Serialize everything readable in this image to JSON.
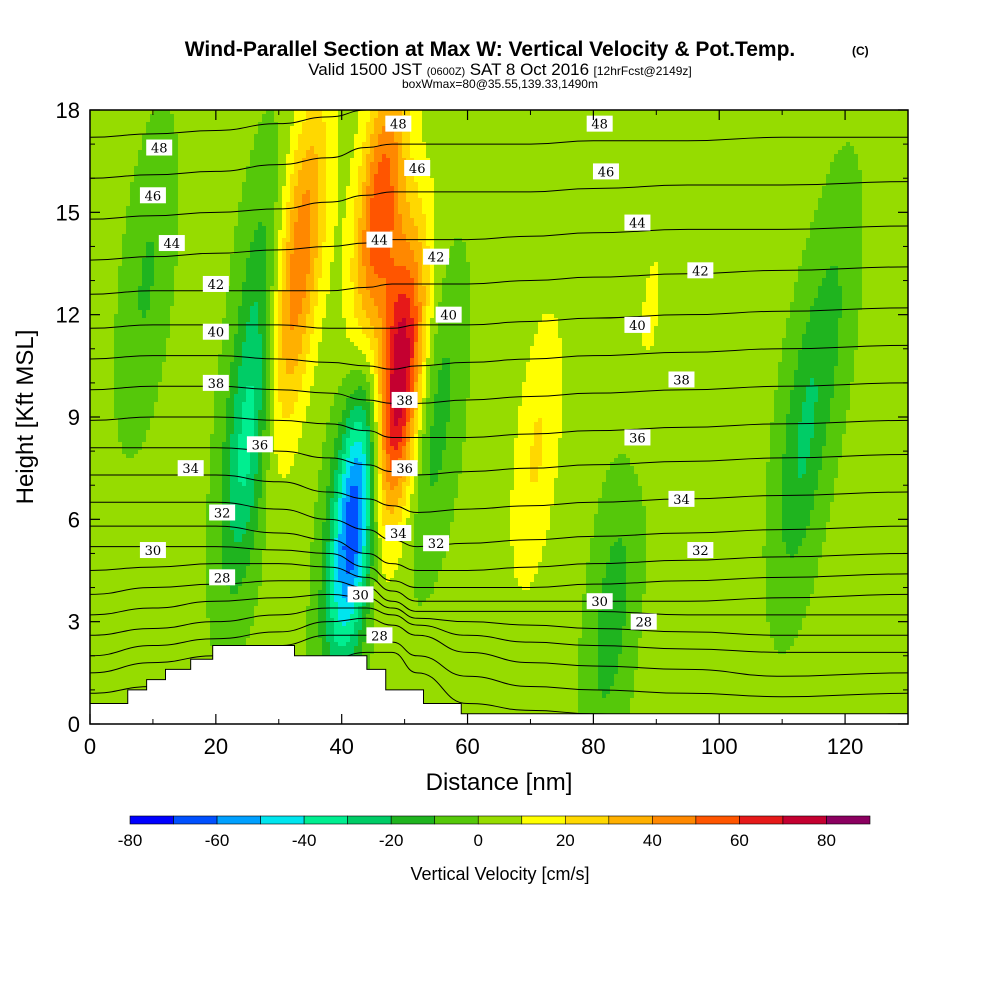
{
  "chart_data": {
    "type": "heatmap",
    "title": "Wind-Parallel Section at Max W: Vertical Velocity & Pot.Temp.",
    "title_mark": "(C)",
    "subtitle_parts": {
      "a": "Valid 1500 JST",
      "b": "(0600Z)",
      "c": "SAT 8 Oct 2016",
      "d": "[12hrFcst@2149z]"
    },
    "subtitle2": "boxWmax=80@35.55,139.33,1490m",
    "xlabel": "Distance [nm]",
    "ylabel": "Height [Kft MSL]",
    "xlim": [
      0,
      130
    ],
    "ylim": [
      0,
      18
    ],
    "xticks": [
      0,
      20,
      40,
      60,
      80,
      100,
      120
    ],
    "yticks": [
      0,
      3,
      6,
      9,
      12,
      15,
      18
    ],
    "colorbar": {
      "label": "Vertical Velocity [cm/s]",
      "levels": [
        -80,
        -70,
        -60,
        -50,
        -40,
        -30,
        -20,
        -10,
        0,
        10,
        20,
        30,
        40,
        50,
        60,
        70,
        80,
        90
      ],
      "colors": [
        "#0000ff",
        "#0050ff",
        "#00a0ff",
        "#00e5ee",
        "#00ee90",
        "#00cc66",
        "#1fb41f",
        "#55c80a",
        "#96dc00",
        "#ffff00",
        "#ffd800",
        "#ffb000",
        "#ff8800",
        "#ff5500",
        "#e61919",
        "#c40030",
        "#8b0060"
      ],
      "tick_labels": [
        "-80",
        "-60",
        "-40",
        "-20",
        "0",
        "20",
        "40",
        "60",
        "80"
      ]
    },
    "w_features": [
      {
        "x": 9,
        "z": 13,
        "w": -14
      },
      {
        "x": 25,
        "z": 8,
        "w": -35
      },
      {
        "x": 27,
        "z": 13,
        "w": -15
      },
      {
        "x": 31,
        "z": 11,
        "w": 20
      },
      {
        "x": 34,
        "z": 14.5,
        "w": 35
      },
      {
        "x": 42,
        "z": 6,
        "w": -75
      },
      {
        "x": 49,
        "z": 10,
        "w": 80
      },
      {
        "x": 46,
        "z": 15,
        "w": 55
      },
      {
        "x": 55,
        "z": 9,
        "w": -18
      },
      {
        "x": 71,
        "z": 8,
        "w": 18
      },
      {
        "x": 83,
        "z": 3.2,
        "w": -18
      },
      {
        "x": 89,
        "z": 12,
        "w": 8
      },
      {
        "x": 113,
        "z": 8,
        "w": -22
      },
      {
        "x": 118,
        "z": 12,
        "w": -12
      }
    ],
    "theta_labels": [
      {
        "v": "48",
        "x": 11,
        "z": 16.9
      },
      {
        "v": "46",
        "x": 10,
        "z": 15.5
      },
      {
        "v": "44",
        "x": 13,
        "z": 14.1
      },
      {
        "v": "42",
        "x": 20,
        "z": 12.9
      },
      {
        "v": "40",
        "x": 20,
        "z": 11.5
      },
      {
        "v": "38",
        "x": 20,
        "z": 10.0
      },
      {
        "v": "36",
        "x": 27,
        "z": 8.2
      },
      {
        "v": "34",
        "x": 16,
        "z": 7.5
      },
      {
        "v": "32",
        "x": 21,
        "z": 6.2
      },
      {
        "v": "30",
        "x": 10,
        "z": 5.1
      },
      {
        "v": "28",
        "x": 21,
        "z": 4.3
      },
      {
        "v": "48",
        "x": 49,
        "z": 17.6
      },
      {
        "v": "46",
        "x": 52,
        "z": 16.3
      },
      {
        "v": "44",
        "x": 46,
        "z": 14.2
      },
      {
        "v": "42",
        "x": 55,
        "z": 13.7
      },
      {
        "v": "40",
        "x": 57,
        "z": 12.0
      },
      {
        "v": "38",
        "x": 50,
        "z": 9.5
      },
      {
        "v": "36",
        "x": 50,
        "z": 7.5
      },
      {
        "v": "34",
        "x": 49,
        "z": 5.6
      },
      {
        "v": "32",
        "x": 55,
        "z": 5.3
      },
      {
        "v": "30",
        "x": 43,
        "z": 3.8
      },
      {
        "v": "28",
        "x": 46,
        "z": 2.6
      },
      {
        "v": "48",
        "x": 81,
        "z": 17.6
      },
      {
        "v": "46",
        "x": 82,
        "z": 16.2
      },
      {
        "v": "44",
        "x": 87,
        "z": 14.7
      },
      {
        "v": "42",
        "x": 97,
        "z": 13.3
      },
      {
        "v": "40",
        "x": 87,
        "z": 11.7
      },
      {
        "v": "38",
        "x": 94,
        "z": 10.1
      },
      {
        "v": "36",
        "x": 87,
        "z": 8.4
      },
      {
        "v": "34",
        "x": 94,
        "z": 6.6
      },
      {
        "v": "32",
        "x": 97,
        "z": 5.1
      },
      {
        "v": "30",
        "x": 81,
        "z": 3.6
      },
      {
        "v": "28",
        "x": 88,
        "z": 3.0
      }
    ],
    "theta_lines": [
      {
        "z": [
          0.9,
          1.1,
          1.2,
          1.5,
          1.9,
          2.1,
          2.1,
          1.5,
          0.6,
          0.4,
          0.3,
          0.2,
          0.2,
          0.3
        ]
      },
      {
        "z": [
          1.5,
          1.8,
          2.0,
          2.3,
          2.6,
          2.6,
          2.4,
          2.0,
          1.4,
          1.1,
          1.0,
          0.9,
          0.8,
          0.9
        ]
      },
      {
        "z": [
          2.0,
          2.3,
          2.5,
          2.7,
          3.0,
          3.1,
          2.9,
          2.6,
          2.1,
          1.8,
          1.7,
          1.6,
          1.4,
          1.5
        ]
      },
      {
        "z": [
          2.6,
          2.8,
          3.0,
          3.2,
          3.4,
          3.4,
          3.2,
          2.9,
          2.6,
          2.4,
          2.3,
          2.2,
          2.1,
          2.1
        ]
      },
      {
        "z": [
          3.2,
          3.4,
          3.6,
          3.7,
          3.8,
          3.7,
          3.4,
          3.1,
          3.0,
          2.9,
          2.8,
          2.7,
          2.6,
          2.6
        ]
      },
      {
        "z": [
          3.8,
          4.0,
          4.1,
          4.2,
          4.2,
          4.0,
          3.6,
          3.3,
          3.3,
          3.3,
          3.3,
          3.2,
          3.2,
          3.2
        ]
      },
      {
        "z": [
          4.5,
          4.6,
          4.7,
          4.7,
          4.6,
          4.3,
          3.9,
          3.6,
          3.6,
          3.6,
          3.6,
          3.6,
          3.7,
          3.8
        ]
      },
      {
        "z": [
          5.2,
          5.2,
          5.2,
          5.1,
          5.0,
          4.6,
          4.2,
          4.0,
          4.0,
          4.0,
          4.1,
          4.2,
          4.3,
          4.4
        ]
      },
      {
        "z": [
          5.8,
          5.8,
          5.8,
          5.6,
          5.4,
          5.0,
          4.7,
          4.5,
          4.5,
          4.6,
          4.7,
          4.8,
          4.9,
          5.0
        ]
      },
      {
        "z": [
          6.5,
          6.5,
          6.5,
          6.3,
          6.0,
          5.7,
          5.4,
          5.2,
          5.3,
          5.4,
          5.5,
          5.6,
          5.7,
          5.8
        ]
      },
      {
        "z": [
          7.3,
          7.3,
          7.3,
          7.1,
          6.8,
          6.6,
          6.4,
          6.2,
          6.3,
          6.4,
          6.5,
          6.6,
          6.7,
          6.8
        ]
      },
      {
        "z": [
          8.1,
          8.1,
          8.1,
          8.0,
          7.8,
          7.6,
          7.4,
          7.3,
          7.4,
          7.5,
          7.6,
          7.7,
          7.8,
          7.9
        ]
      },
      {
        "z": [
          8.9,
          9.0,
          9.0,
          8.9,
          8.8,
          8.6,
          8.4,
          8.4,
          8.4,
          8.5,
          8.6,
          8.7,
          8.8,
          8.9
        ]
      },
      {
        "z": [
          9.8,
          9.9,
          9.9,
          9.8,
          9.7,
          9.5,
          9.4,
          9.4,
          9.5,
          9.6,
          9.7,
          9.8,
          9.9,
          10.0
        ]
      },
      {
        "z": [
          10.7,
          10.8,
          10.8,
          10.7,
          10.6,
          10.5,
          10.4,
          10.5,
          10.6,
          10.7,
          10.8,
          10.9,
          11.0,
          11.1
        ]
      },
      {
        "z": [
          11.6,
          11.7,
          11.7,
          11.7,
          11.6,
          11.6,
          11.6,
          11.7,
          11.7,
          11.8,
          11.9,
          12.0,
          12.1,
          12.2
        ]
      },
      {
        "z": [
          12.6,
          12.7,
          12.7,
          12.7,
          12.7,
          12.8,
          12.9,
          12.9,
          12.9,
          13.0,
          13.1,
          13.2,
          13.3,
          13.4
        ]
      },
      {
        "z": [
          13.6,
          13.7,
          13.8,
          13.9,
          14.0,
          14.1,
          14.2,
          14.2,
          14.2,
          14.3,
          14.4,
          14.5,
          14.5,
          14.6
        ]
      },
      {
        "z": [
          14.8,
          14.9,
          15.0,
          15.1,
          15.3,
          15.5,
          15.6,
          15.6,
          15.6,
          15.6,
          15.7,
          15.8,
          15.8,
          15.9
        ]
      },
      {
        "z": [
          16.0,
          16.1,
          16.2,
          16.4,
          16.6,
          16.9,
          17.0,
          17.0,
          17.0,
          17.0,
          17.1,
          17.1,
          17.2,
          17.2
        ]
      },
      {
        "z": [
          17.2,
          17.3,
          17.4,
          17.6,
          17.8,
          18.0,
          18.0,
          18.0,
          18.0,
          18.0,
          18.0,
          18.0,
          18.0,
          18.0
        ]
      }
    ],
    "theta_line_x": [
      0,
      10,
      20,
      30,
      38,
      44,
      48,
      52,
      60,
      70,
      80,
      95,
      110,
      130
    ],
    "terrain": [
      {
        "x": 0,
        "z": 0.6
      },
      {
        "x": 6,
        "z": 0.6
      },
      {
        "x": 6,
        "z": 1.0
      },
      {
        "x": 9,
        "z": 1.0
      },
      {
        "x": 9,
        "z": 1.3
      },
      {
        "x": 12,
        "z": 1.3
      },
      {
        "x": 12,
        "z": 1.6
      },
      {
        "x": 16,
        "z": 1.6
      },
      {
        "x": 16,
        "z": 1.9
      },
      {
        "x": 19.5,
        "z": 1.9
      },
      {
        "x": 19.5,
        "z": 2.3
      },
      {
        "x": 32.5,
        "z": 2.3
      },
      {
        "x": 32.5,
        "z": 2.0
      },
      {
        "x": 44,
        "z": 2.0
      },
      {
        "x": 44,
        "z": 1.6
      },
      {
        "x": 47,
        "z": 1.6
      },
      {
        "x": 47,
        "z": 1.0
      },
      {
        "x": 53,
        "z": 1.0
      },
      {
        "x": 53,
        "z": 0.6
      },
      {
        "x": 59,
        "z": 0.6
      },
      {
        "x": 59,
        "z": 0.3
      },
      {
        "x": 130,
        "z": 0.3
      }
    ]
  }
}
